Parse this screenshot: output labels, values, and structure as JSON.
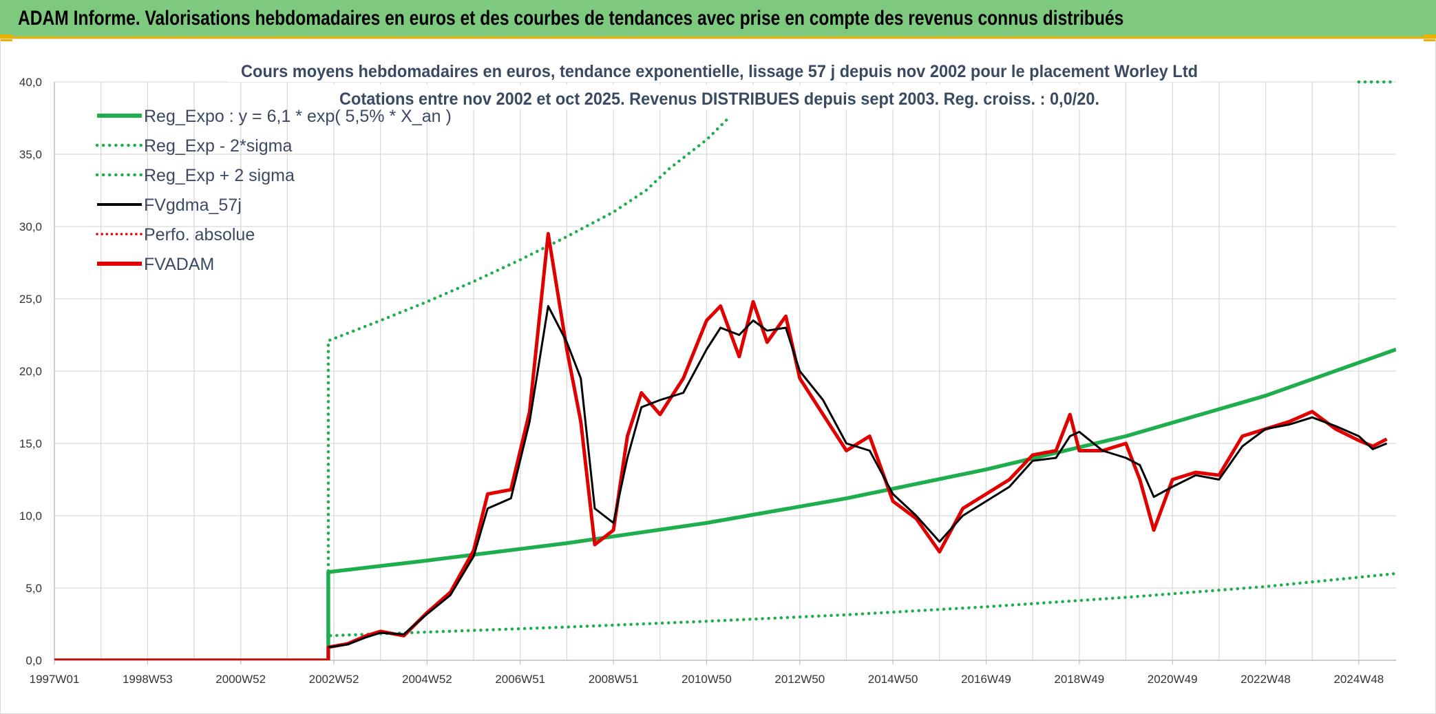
{
  "header": {
    "title": "ADAM Informe. Valorisations hebdomadaires en euros et des courbes de tendances avec prise en compte des revenus connus distribués",
    "background_color": "#7dc97d",
    "accent_color": "#e9b200"
  },
  "chart_data": {
    "type": "line",
    "title": "Cours moyens hebdomadaires en euros, tendance exponentielle, lissage 57 j depuis nov 2002 pour le placement Worley Ltd",
    "subtitle": "Cotations entre nov 2002 et oct 2025. Revenus DISTRIBUES depuis sept 2003. Reg. croiss. : 0,0/20.",
    "xlabel": "",
    "ylabel": "",
    "ylim": [
      0,
      40
    ],
    "yticks": [
      "0,0",
      "5,0",
      "10,0",
      "15,0",
      "20,0",
      "25,0",
      "30,0",
      "35,0",
      "40,0"
    ],
    "xlim": [
      1997.0,
      2025.8
    ],
    "xticks": [
      {
        "label": "1997W01",
        "x": 1997.0
      },
      {
        "label": "1998W53",
        "x": 1999.0
      },
      {
        "label": "2000W52",
        "x": 2001.0
      },
      {
        "label": "2002W52",
        "x": 2003.0
      },
      {
        "label": "2004W52",
        "x": 2005.0
      },
      {
        "label": "2006W51",
        "x": 2007.0
      },
      {
        "label": "2008W51",
        "x": 2009.0
      },
      {
        "label": "2010W50",
        "x": 2011.0
      },
      {
        "label": "2012W50",
        "x": 2013.0
      },
      {
        "label": "2014W50",
        "x": 2015.0
      },
      {
        "label": "2016W49",
        "x": 2017.0
      },
      {
        "label": "2018W49",
        "x": 2019.0
      },
      {
        "label": "2020W49",
        "x": 2021.0
      },
      {
        "label": "2022W48",
        "x": 2023.0
      },
      {
        "label": "2024W48",
        "x": 2025.0
      }
    ],
    "grid": true,
    "legend_position": "top-left",
    "legend": [
      {
        "label": "Reg_Expo : y = 6,1 * exp( 5,5% *  X_an )",
        "color": "#1fae4e",
        "style": "solid-thick"
      },
      {
        "label": "Reg_Exp - 2*sigma",
        "color": "#1fae4e",
        "style": "dotted"
      },
      {
        "label": "Reg_Exp + 2 sigma",
        "color": "#1fae4e",
        "style": "dotted"
      },
      {
        "label": "FVgdma_57j",
        "color": "#000000",
        "style": "solid"
      },
      {
        "label": "Perfo. absolue",
        "color": "#e00000",
        "style": "dotted"
      },
      {
        "label": "FVADAM",
        "color": "#e00000",
        "style": "solid-thick"
      }
    ],
    "series": [
      {
        "name": "Reg_Expo : y = 6,1 * exp( 5,5% *  X_an )",
        "color": "#1fae4e",
        "x": [
          1997.0,
          2002.88,
          2002.88,
          2005.0,
          2008.0,
          2011.0,
          2014.0,
          2017.0,
          2020.0,
          2023.0,
          2025.8
        ],
        "values": [
          0,
          0,
          6.1,
          6.9,
          8.1,
          9.5,
          11.2,
          13.2,
          15.5,
          18.3,
          21.5
        ]
      },
      {
        "name": "Reg_Exp - 2*sigma",
        "color": "#1fae4e",
        "x": [
          1997.0,
          2002.88,
          2002.88,
          2005.0,
          2008.0,
          2011.0,
          2014.0,
          2017.0,
          2020.0,
          2023.0,
          2025.8
        ],
        "values": [
          0,
          0,
          1.7,
          1.95,
          2.3,
          2.7,
          3.15,
          3.7,
          4.35,
          5.1,
          6.0
        ]
      },
      {
        "name": "Reg_Exp + 2 sigma",
        "color": "#1fae4e",
        "x": [
          1997.0,
          2002.88,
          2002.88,
          2004.0,
          2005.0,
          2006.0,
          2007.0,
          2008.0,
          2009.0,
          2009.7,
          2010.2,
          2011.0,
          2011.5
        ],
        "values": [
          0,
          0,
          22.1,
          23.5,
          24.8,
          26.2,
          27.7,
          29.3,
          31.0,
          32.5,
          34.0,
          36.0,
          37.6
        ],
        "clipped_value": 40,
        "clip_x_start": 2025.0
      },
      {
        "name": "FVgdma_57j",
        "color": "#000000",
        "x": [
          2002.88,
          2003.3,
          2003.7,
          2004.0,
          2004.5,
          2005.0,
          2005.5,
          2006.0,
          2006.3,
          2006.8,
          2007.2,
          2007.6,
          2008.0,
          2008.3,
          2008.6,
          2009.0,
          2009.3,
          2009.6,
          2010.0,
          2010.5,
          2011.0,
          2011.3,
          2011.7,
          2012.0,
          2012.3,
          2012.7,
          2013.0,
          2013.5,
          2014.0,
          2014.5,
          2015.0,
          2015.5,
          2016.0,
          2016.5,
          2017.0,
          2017.5,
          2018.0,
          2018.5,
          2018.8,
          2019.0,
          2019.5,
          2020.0,
          2020.3,
          2020.6,
          2021.0,
          2021.5,
          2022.0,
          2022.5,
          2023.0,
          2023.5,
          2024.0,
          2024.5,
          2025.0,
          2025.3,
          2025.6
        ],
        "values": [
          0.9,
          1.1,
          1.6,
          1.9,
          1.8,
          3.2,
          4.5,
          7.2,
          10.5,
          11.2,
          16.5,
          24.5,
          22.0,
          19.5,
          10.5,
          9.5,
          14.0,
          17.5,
          18.0,
          18.5,
          21.5,
          23.0,
          22.5,
          23.5,
          22.8,
          23.0,
          20.0,
          18.0,
          15.0,
          14.5,
          11.5,
          10.0,
          8.2,
          10.0,
          11.0,
          12.0,
          13.8,
          14.0,
          15.5,
          15.8,
          14.5,
          14.0,
          13.5,
          11.3,
          12.0,
          12.8,
          12.5,
          14.8,
          16.0,
          16.3,
          16.8,
          16.2,
          15.5,
          14.6,
          15.0
        ]
      },
      {
        "name": "Perfo. absolue",
        "color": "#e00000",
        "x": [
          2002.88,
          2003.3,
          2003.7,
          2004.0,
          2004.5,
          2005.0,
          2005.5,
          2006.0,
          2006.3,
          2006.8,
          2007.2,
          2007.6,
          2008.0,
          2008.3,
          2008.6,
          2009.0,
          2009.3,
          2009.6,
          2010.0,
          2010.5,
          2011.0,
          2011.3,
          2011.7,
          2012.0,
          2012.3,
          2012.7,
          2013.0,
          2013.5,
          2014.0,
          2014.5,
          2015.0,
          2015.5,
          2016.0,
          2016.5,
          2017.0,
          2017.5,
          2018.0,
          2018.5,
          2018.8,
          2019.0,
          2019.5,
          2020.0,
          2020.3,
          2020.6,
          2021.0,
          2021.5,
          2022.0,
          2022.5,
          2023.0,
          2023.5,
          2024.0,
          2024.5,
          2025.0,
          2025.3,
          2025.6
        ],
        "values": [
          0.9,
          1.15,
          1.7,
          2.0,
          1.7,
          3.3,
          4.7,
          7.6,
          11.5,
          11.8,
          17.2,
          29.5,
          21.5,
          16.5,
          8.0,
          9.0,
          15.5,
          18.5,
          17.0,
          19.5,
          23.5,
          24.5,
          21.0,
          24.8,
          22.0,
          23.8,
          19.5,
          17.0,
          14.5,
          15.5,
          11.0,
          9.8,
          7.5,
          10.5,
          11.5,
          12.5,
          14.2,
          14.5,
          17.0,
          14.5,
          14.5,
          15.0,
          12.5,
          9.0,
          12.5,
          13.0,
          12.8,
          15.5,
          16.0,
          16.5,
          17.2,
          16.0,
          15.2,
          14.8,
          15.3
        ]
      },
      {
        "name": "FVADAM",
        "color": "#e00000",
        "x": [
          1997.0,
          2002.88,
          2002.88,
          2003.3,
          2003.7,
          2004.0,
          2004.5,
          2005.0,
          2005.5,
          2006.0,
          2006.3,
          2006.8,
          2007.2,
          2007.6,
          2008.0,
          2008.3,
          2008.6,
          2009.0,
          2009.3,
          2009.6,
          2010.0,
          2010.5,
          2011.0,
          2011.3,
          2011.7,
          2012.0,
          2012.3,
          2012.7,
          2013.0,
          2013.5,
          2014.0,
          2014.5,
          2015.0,
          2015.5,
          2016.0,
          2016.5,
          2017.0,
          2017.5,
          2018.0,
          2018.5,
          2018.8,
          2019.0,
          2019.5,
          2020.0,
          2020.3,
          2020.6,
          2021.0,
          2021.5,
          2022.0,
          2022.5,
          2023.0,
          2023.5,
          2024.0,
          2024.5,
          2025.0,
          2025.3,
          2025.6
        ],
        "values": [
          0,
          0,
          0.9,
          1.15,
          1.7,
          2.0,
          1.7,
          3.3,
          4.7,
          7.6,
          11.5,
          11.8,
          17.2,
          29.5,
          21.5,
          16.5,
          8.0,
          9.0,
          15.5,
          18.5,
          17.0,
          19.5,
          23.5,
          24.5,
          21.0,
          24.8,
          22.0,
          23.8,
          19.5,
          17.0,
          14.5,
          15.5,
          11.0,
          9.8,
          7.5,
          10.5,
          11.5,
          12.5,
          14.2,
          14.5,
          17.0,
          14.5,
          14.5,
          15.0,
          12.5,
          9.0,
          12.5,
          13.0,
          12.8,
          15.5,
          16.0,
          16.5,
          17.2,
          16.0,
          15.2,
          14.8,
          15.3
        ]
      }
    ]
  }
}
